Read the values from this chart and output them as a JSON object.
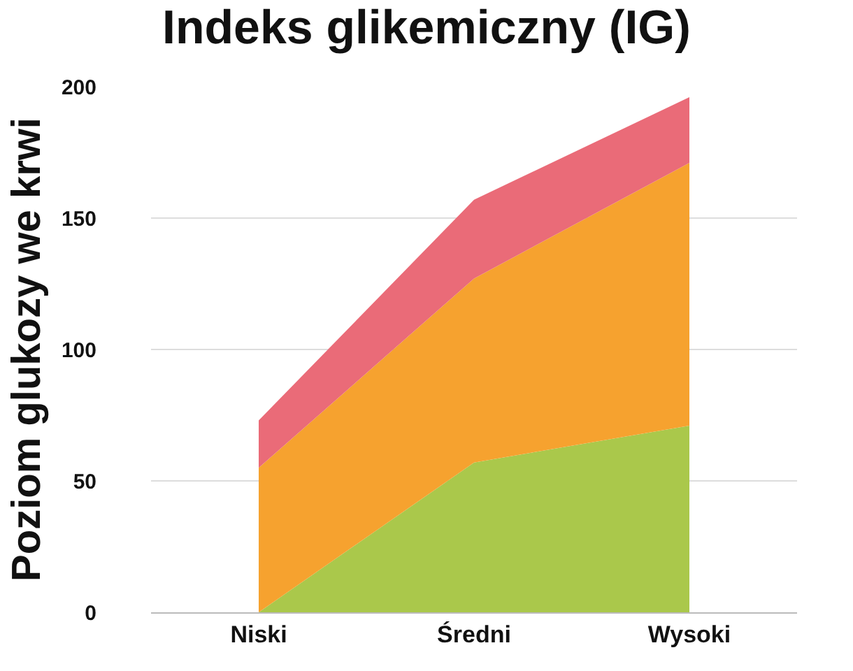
{
  "chart_data": {
    "type": "area",
    "title": "Indeks glikemiczny (IG)",
    "ylabel": "Poziom glukozy we krwi",
    "categories": [
      "Niski",
      "Średni",
      "Wysoki"
    ],
    "stacked": true,
    "series": [
      {
        "color": "#aac84b",
        "values": [
          0,
          57,
          71
        ]
      },
      {
        "color": "#f6a22f",
        "values": [
          55,
          70,
          100
        ]
      },
      {
        "color": "#ea6b78",
        "values": [
          18,
          30,
          25
        ]
      }
    ],
    "ylim": [
      0,
      200
    ],
    "yticks": [
      0,
      50,
      100,
      150,
      200
    ],
    "grid": "y"
  }
}
